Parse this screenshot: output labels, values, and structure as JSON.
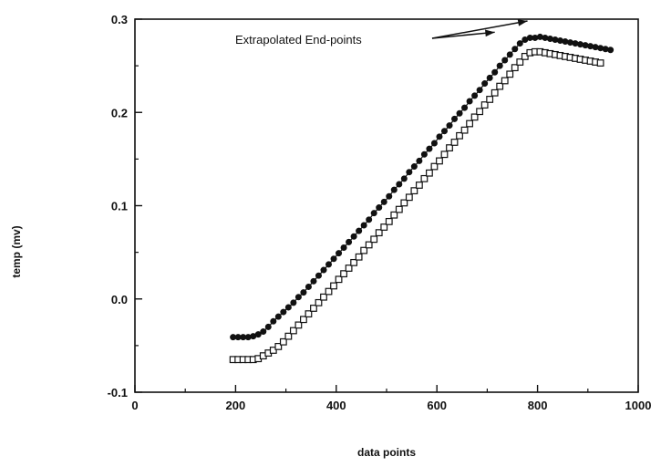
{
  "chart_data": {
    "type": "scatter",
    "xlabel": "data points",
    "ylabel": "temp (mv)",
    "xlim": [
      0,
      1000
    ],
    "ylim": [
      -0.1,
      0.3
    ],
    "x_ticks": [
      0,
      200,
      400,
      600,
      800,
      1000
    ],
    "y_ticks": [
      -0.1,
      0.0,
      0.1,
      0.2,
      0.3
    ],
    "x_tick_labels": [
      "0",
      "200",
      "400",
      "600",
      "800",
      "1000"
    ],
    "y_tick_labels": [
      "-0.1",
      "0.0",
      "0.1",
      "0.2",
      "0.3"
    ],
    "grid": false,
    "annotation": {
      "text": "Extrapolated End-points",
      "targets": [
        [
          715,
          0.286
        ],
        [
          780,
          0.298
        ]
      ]
    },
    "series": [
      {
        "marker": "filled-circle",
        "points": [
          [
            195,
            -0.041
          ],
          [
            205,
            -0.041
          ],
          [
            215,
            -0.041
          ],
          [
            225,
            -0.041
          ],
          [
            235,
            -0.04
          ],
          [
            245,
            -0.038
          ],
          [
            255,
            -0.035
          ],
          [
            265,
            -0.03
          ],
          [
            275,
            -0.024
          ],
          [
            285,
            -0.019
          ],
          [
            295,
            -0.014
          ],
          [
            305,
            -0.009
          ],
          [
            315,
            -0.004
          ],
          [
            325,
            0.002
          ],
          [
            335,
            0.007
          ],
          [
            345,
            0.013
          ],
          [
            355,
            0.019
          ],
          [
            365,
            0.025
          ],
          [
            375,
            0.031
          ],
          [
            385,
            0.037
          ],
          [
            395,
            0.043
          ],
          [
            405,
            0.049
          ],
          [
            415,
            0.055
          ],
          [
            425,
            0.061
          ],
          [
            435,
            0.067
          ],
          [
            445,
            0.073
          ],
          [
            455,
            0.079
          ],
          [
            465,
            0.085
          ],
          [
            475,
            0.092
          ],
          [
            485,
            0.098
          ],
          [
            495,
            0.104
          ],
          [
            505,
            0.11
          ],
          [
            515,
            0.117
          ],
          [
            525,
            0.123
          ],
          [
            535,
            0.129
          ],
          [
            545,
            0.136
          ],
          [
            555,
            0.142
          ],
          [
            565,
            0.148
          ],
          [
            575,
            0.155
          ],
          [
            585,
            0.161
          ],
          [
            595,
            0.167
          ],
          [
            605,
            0.174
          ],
          [
            615,
            0.18
          ],
          [
            625,
            0.186
          ],
          [
            635,
            0.193
          ],
          [
            645,
            0.199
          ],
          [
            655,
            0.205
          ],
          [
            665,
            0.212
          ],
          [
            675,
            0.218
          ],
          [
            685,
            0.224
          ],
          [
            695,
            0.231
          ],
          [
            705,
            0.237
          ],
          [
            715,
            0.243
          ],
          [
            725,
            0.25
          ],
          [
            735,
            0.256
          ],
          [
            745,
            0.262
          ],
          [
            755,
            0.268
          ],
          [
            765,
            0.274
          ],
          [
            775,
            0.278
          ],
          [
            785,
            0.28
          ],
          [
            795,
            0.28
          ],
          [
            805,
            0.281
          ],
          [
            815,
            0.28
          ],
          [
            825,
            0.279
          ],
          [
            835,
            0.278
          ],
          [
            845,
            0.277
          ],
          [
            855,
            0.276
          ],
          [
            865,
            0.275
          ],
          [
            875,
            0.274
          ],
          [
            885,
            0.273
          ],
          [
            895,
            0.272
          ],
          [
            905,
            0.271
          ],
          [
            915,
            0.27
          ],
          [
            925,
            0.269
          ],
          [
            935,
            0.268
          ],
          [
            945,
            0.267
          ]
        ]
      },
      {
        "marker": "open-square",
        "points": [
          [
            195,
            -0.065
          ],
          [
            205,
            -0.065
          ],
          [
            215,
            -0.065
          ],
          [
            225,
            -0.065
          ],
          [
            235,
            -0.065
          ],
          [
            245,
            -0.064
          ],
          [
            255,
            -0.061
          ],
          [
            265,
            -0.058
          ],
          [
            275,
            -0.055
          ],
          [
            285,
            -0.051
          ],
          [
            295,
            -0.046
          ],
          [
            305,
            -0.04
          ],
          [
            315,
            -0.034
          ],
          [
            325,
            -0.028
          ],
          [
            335,
            -0.022
          ],
          [
            345,
            -0.016
          ],
          [
            355,
            -0.01
          ],
          [
            365,
            -0.004
          ],
          [
            375,
            0.002
          ],
          [
            385,
            0.008
          ],
          [
            395,
            0.014
          ],
          [
            405,
            0.021
          ],
          [
            415,
            0.027
          ],
          [
            425,
            0.033
          ],
          [
            435,
            0.039
          ],
          [
            445,
            0.045
          ],
          [
            455,
            0.052
          ],
          [
            465,
            0.058
          ],
          [
            475,
            0.064
          ],
          [
            485,
            0.071
          ],
          [
            495,
            0.077
          ],
          [
            505,
            0.083
          ],
          [
            515,
            0.09
          ],
          [
            525,
            0.096
          ],
          [
            535,
            0.103
          ],
          [
            545,
            0.109
          ],
          [
            555,
            0.116
          ],
          [
            565,
            0.122
          ],
          [
            575,
            0.129
          ],
          [
            585,
            0.135
          ],
          [
            595,
            0.142
          ],
          [
            605,
            0.148
          ],
          [
            615,
            0.155
          ],
          [
            625,
            0.162
          ],
          [
            635,
            0.168
          ],
          [
            645,
            0.175
          ],
          [
            655,
            0.181
          ],
          [
            665,
            0.188
          ],
          [
            675,
            0.195
          ],
          [
            685,
            0.201
          ],
          [
            695,
            0.208
          ],
          [
            705,
            0.214
          ],
          [
            715,
            0.221
          ],
          [
            725,
            0.228
          ],
          [
            735,
            0.234
          ],
          [
            745,
            0.241
          ],
          [
            755,
            0.248
          ],
          [
            765,
            0.254
          ],
          [
            775,
            0.26
          ],
          [
            785,
            0.264
          ],
          [
            795,
            0.265
          ],
          [
            805,
            0.265
          ],
          [
            815,
            0.264
          ],
          [
            825,
            0.263
          ],
          [
            835,
            0.262
          ],
          [
            845,
            0.261
          ],
          [
            855,
            0.26
          ],
          [
            865,
            0.259
          ],
          [
            875,
            0.258
          ],
          [
            885,
            0.257
          ],
          [
            895,
            0.256
          ],
          [
            905,
            0.255
          ],
          [
            915,
            0.254
          ],
          [
            925,
            0.253
          ]
        ]
      }
    ]
  }
}
